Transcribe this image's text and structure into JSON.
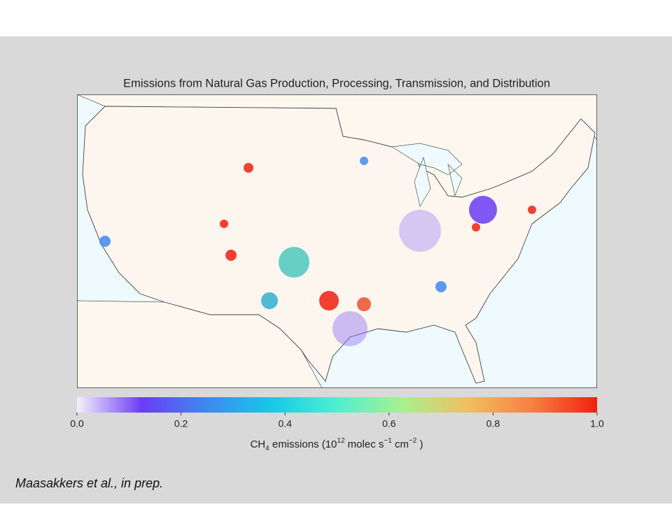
{
  "title": "Emissions from Natural Gas Production, Processing, Transmission, and Distribution",
  "colorbar": {
    "lim": [
      0,
      1
    ],
    "ticks": [
      {
        "value": 0,
        "label": "0.0"
      },
      {
        "value": 0.2,
        "label": "0.2"
      },
      {
        "value": 0.4,
        "label": "0.4"
      },
      {
        "value": 0.6,
        "label": "0.6"
      },
      {
        "value": 0.8,
        "label": "0.8"
      },
      {
        "value": 1,
        "label": "1.0"
      }
    ],
    "colors": [
      "#f4f0fb",
      "#6b3cf5",
      "#3d8af0",
      "#18c8e8",
      "#4ef0d0",
      "#a8f090",
      "#f0c060",
      "#f88040",
      "#f02010"
    ],
    "label": [
      {
        "text": "CH"
      },
      {
        "text": "4",
        "sub": true
      },
      {
        "text": " emissions (10"
      },
      {
        "text": "12",
        "sup": true
      },
      {
        "text": " molec s"
      },
      {
        "text": "−1",
        "sup": true
      },
      {
        "text": " cm"
      },
      {
        "text": "−2",
        "sup": true
      },
      {
        "text": " )"
      }
    ]
  },
  "citation": "Maasakkers et al., in prep."
}
